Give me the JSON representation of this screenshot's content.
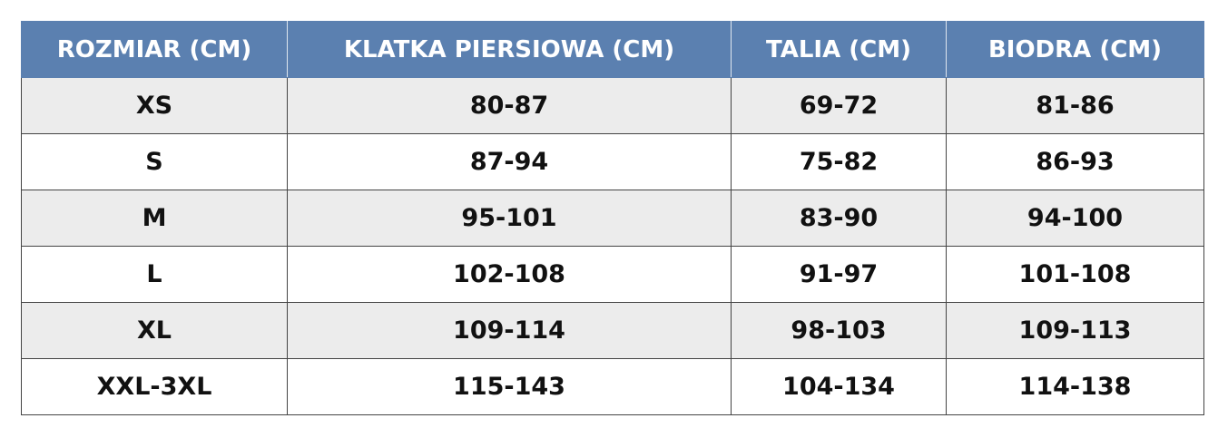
{
  "table": {
    "header": [
      "ROZMIAR (CM)",
      "KLATKA PIERSIOWA (CM)",
      "TALIA (CM)",
      "BIODRA (CM)"
    ],
    "rows": [
      [
        "XS",
        "80-87",
        "69-72",
        "81-86"
      ],
      [
        "S",
        "87-94",
        "75-82",
        "86-93"
      ],
      [
        "M",
        "95-101",
        "83-90",
        "94-100"
      ],
      [
        "L",
        "102-108",
        "91-97",
        "101-108"
      ],
      [
        "XL",
        "109-114",
        "98-103",
        "109-113"
      ],
      [
        "XXL-3XL",
        "115-143",
        "104-134",
        "114-138"
      ]
    ]
  }
}
